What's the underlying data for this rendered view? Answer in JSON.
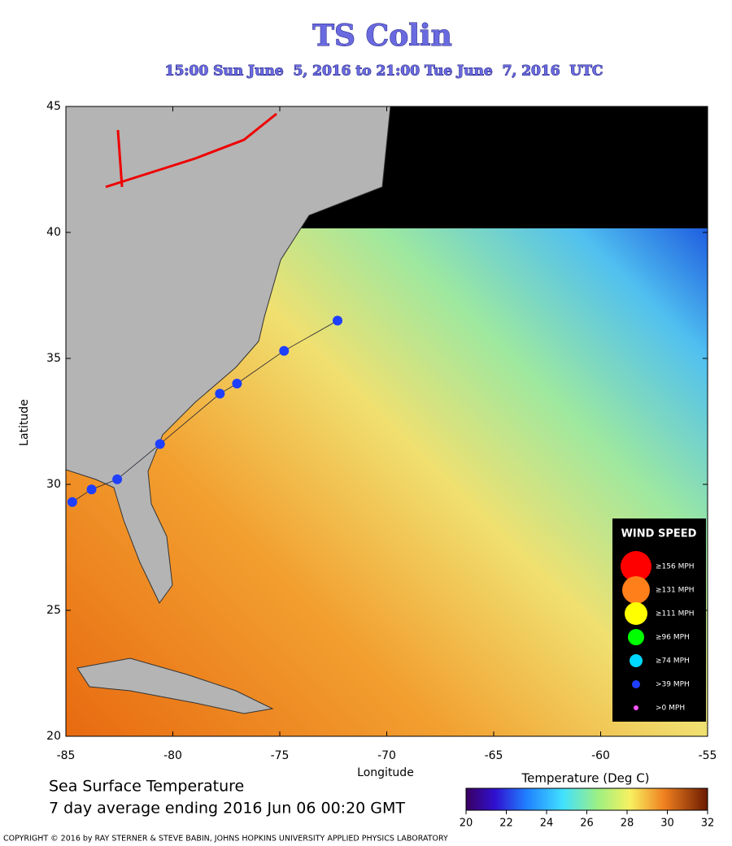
{
  "header": {
    "title": "TS Colin",
    "subtitle": "15:00 Sun June  5, 2016 to 21:00 Tue June  7, 2016  UTC"
  },
  "map": {
    "xlabel": "Longitude",
    "ylabel": "Latitude",
    "xlim": [
      -85,
      -55
    ],
    "xticks": [
      -85,
      -80,
      -75,
      -70,
      -65,
      -60,
      -55
    ],
    "ylim": [
      20,
      45
    ],
    "yticks": [
      20,
      25,
      30,
      35,
      40,
      45
    ]
  },
  "track": {
    "color": "#1f3fff",
    "lon": [
      -84.7,
      -83.8,
      -82.6,
      -80.6,
      -77.8,
      -77.0,
      -74.8,
      -72.3
    ],
    "lat": [
      29.3,
      29.8,
      30.2,
      31.6,
      33.6,
      34.0,
      35.3,
      36.5
    ]
  },
  "legend": {
    "title": "WIND SPEED",
    "entries": [
      {
        "label": "≥156 MPH",
        "color": "#ff0000"
      },
      {
        "label": "≥131 MPH",
        "color": "#ff7f1a"
      },
      {
        "label": "≥111 MPH",
        "color": "#ffff00"
      },
      {
        "label": "≥96 MPH",
        "color": "#00ff00"
      },
      {
        "label": "≥74 MPH",
        "color": "#00d8ff"
      },
      {
        "label": ">39 MPH",
        "color": "#1f3fff"
      },
      {
        "label": ">0 MPH",
        "color": "#ff55ff"
      }
    ]
  },
  "colorbar": {
    "title": "Temperature (Deg C)",
    "lim": [
      20,
      32
    ],
    "ticks": [
      20,
      22,
      24,
      26,
      28,
      30,
      32
    ]
  },
  "footer": {
    "line1": "Sea Surface Temperature",
    "line2": "7 day average ending 2016 Jun 06 00:20 GMT",
    "copyright": "COPYRIGHT © 2016 by RAY STERNER & STEVE BABIN, JOHNS HOPKINS UNIVERSITY APPLIED PHYSICS LABORATORY"
  }
}
